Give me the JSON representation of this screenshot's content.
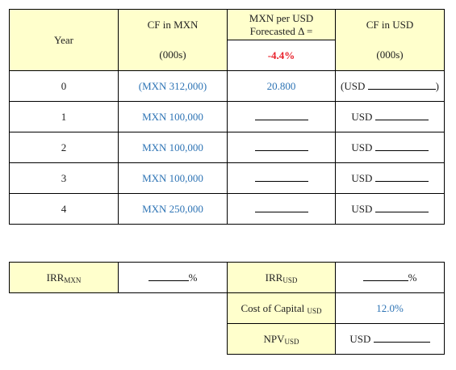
{
  "headers": {
    "year": "Year",
    "cf_mxn": "CF in MXN",
    "cf_mxn_units": "(000s)",
    "rate_line1": "MXN per USD",
    "rate_line2": "Forecasted Δ =",
    "rate_change": "-4.4%",
    "cf_usd": "CF in USD",
    "cf_usd_units": "(000s)"
  },
  "rows": [
    {
      "year": "0",
      "cf_mxn": "(MXN 312,000)",
      "rate": "20.800",
      "usd_prefix": "(USD",
      "usd_suffix": ")"
    },
    {
      "year": "1",
      "cf_mxn": "MXN 100,000",
      "rate": "",
      "usd_prefix": "USD",
      "usd_suffix": ""
    },
    {
      "year": "2",
      "cf_mxn": "MXN 100,000",
      "rate": "",
      "usd_prefix": "USD",
      "usd_suffix": ""
    },
    {
      "year": "3",
      "cf_mxn": "MXN 100,000",
      "rate": "",
      "usd_prefix": "USD",
      "usd_suffix": ""
    },
    {
      "year": "4",
      "cf_mxn": "MXN 250,000",
      "rate": "",
      "usd_prefix": "USD",
      "usd_suffix": ""
    }
  ],
  "summary": {
    "irr_mxn_label": "IRR",
    "irr_mxn_sub": "MXN",
    "irr_mxn_unit": "%",
    "irr_usd_label": "IRR",
    "irr_usd_sub": "USD",
    "irr_usd_unit": "%",
    "coc_label": "Cost of Capital",
    "coc_sub": "USD",
    "coc_value": "12.0%",
    "npv_label": "NPV",
    "npv_sub": "USD",
    "npv_prefix": "USD"
  },
  "colors": {
    "header_fill": "#ffffcc",
    "input_blue": "#2e74b5",
    "accent_red": "#e8202a"
  }
}
